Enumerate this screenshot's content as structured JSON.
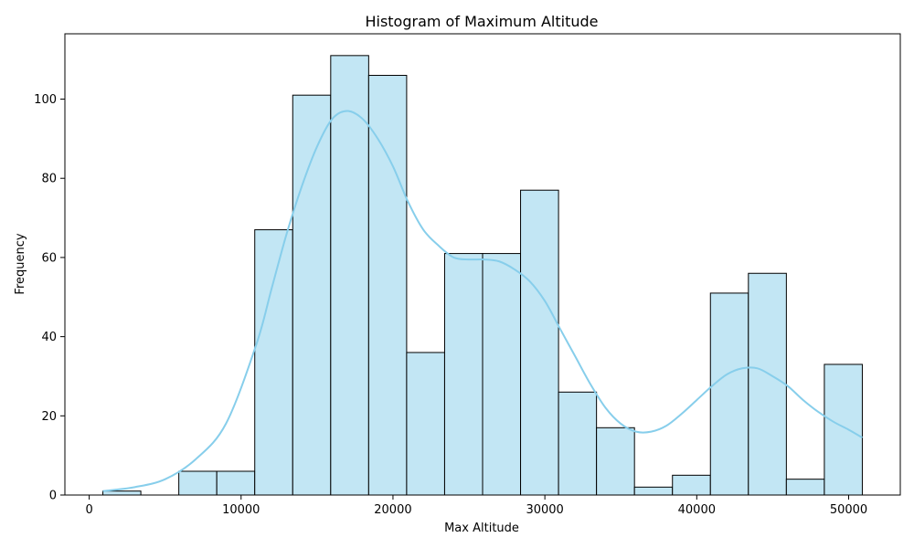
{
  "chart_data": {
    "type": "bar",
    "title": "Histogram of Maximum Altitude",
    "xlabel": "Max Altitude",
    "ylabel": "Frequency",
    "xlim": [
      -1600,
      53400
    ],
    "ylim": [
      0,
      116.5
    ],
    "bar_color": "#c2e6f4",
    "edge_color": "#000000",
    "kde_color": "#87ceeb",
    "x_ticks": [
      0,
      10000,
      20000,
      30000,
      40000,
      50000
    ],
    "y_ticks": [
      0,
      20,
      40,
      60,
      80,
      100
    ],
    "bins": [
      {
        "x0": 900,
        "x1": 3400,
        "count": 1
      },
      {
        "x0": 3400,
        "x1": 5900,
        "count": 0
      },
      {
        "x0": 5900,
        "x1": 8400,
        "count": 6
      },
      {
        "x0": 8400,
        "x1": 10900,
        "count": 6
      },
      {
        "x0": 10900,
        "x1": 13400,
        "count": 67
      },
      {
        "x0": 13400,
        "x1": 15900,
        "count": 101
      },
      {
        "x0": 15900,
        "x1": 18400,
        "count": 111
      },
      {
        "x0": 18400,
        "x1": 20900,
        "count": 106
      },
      {
        "x0": 20900,
        "x1": 23400,
        "count": 36
      },
      {
        "x0": 23400,
        "x1": 25900,
        "count": 61
      },
      {
        "x0": 25900,
        "x1": 28400,
        "count": 61
      },
      {
        "x0": 28400,
        "x1": 30900,
        "count": 77
      },
      {
        "x0": 30900,
        "x1": 33400,
        "count": 26
      },
      {
        "x0": 33400,
        "x1": 35900,
        "count": 17
      },
      {
        "x0": 35900,
        "x1": 38400,
        "count": 2
      },
      {
        "x0": 38400,
        "x1": 40900,
        "count": 5
      },
      {
        "x0": 40900,
        "x1": 43400,
        "count": 51
      },
      {
        "x0": 43400,
        "x1": 45900,
        "count": 56
      },
      {
        "x0": 45900,
        "x1": 48400,
        "count": 4
      },
      {
        "x0": 48400,
        "x1": 50900,
        "count": 33
      }
    ],
    "kde": {
      "x": [
        900,
        3000,
        5000,
        7000,
        9000,
        11000,
        12000,
        13000,
        14000,
        15000,
        16000,
        17000,
        18000,
        19000,
        20000,
        21000,
        22000,
        23000,
        24000,
        25000,
        26000,
        27000,
        28000,
        29000,
        30000,
        31000,
        32000,
        33000,
        34000,
        35000,
        36000,
        37000,
        38000,
        39000,
        40000,
        41000,
        42000,
        43000,
        44000,
        45000,
        46000,
        47000,
        48000,
        49000,
        50000,
        50900
      ],
      "y": [
        1,
        2,
        4,
        9,
        18,
        38,
        52,
        66,
        78,
        88,
        95,
        97,
        95,
        90,
        83,
        74,
        67,
        63,
        60,
        59.5,
        59.5,
        59,
        57,
        54,
        49,
        42,
        35,
        28,
        22,
        18,
        16,
        16,
        17.5,
        20.5,
        24,
        27.5,
        30.5,
        32,
        32,
        30,
        27.5,
        24,
        21,
        18.5,
        16.5,
        14.5
      ]
    }
  }
}
